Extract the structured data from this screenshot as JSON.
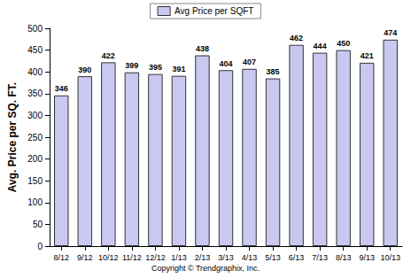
{
  "chart_data": {
    "type": "bar",
    "ylabel": "Avg. Price per SQ. FT.",
    "annotations": [
      "Copyright © Trendgraphix, Inc."
    ],
    "categories": [
      "8/12",
      "9/12",
      "10/12",
      "11/12",
      "12/12",
      "1/13",
      "2/13",
      "3/13",
      "4/13",
      "5/13",
      "6/13",
      "7/13",
      "8/13",
      "9/13",
      "10/13"
    ],
    "series": [
      {
        "name": "Avg Price per SQFT",
        "color": "#c8c8f0",
        "values": [
          346,
          390,
          422,
          399,
          395,
          391,
          438,
          404,
          407,
          385,
          462,
          444,
          450,
          421,
          474
        ]
      }
    ],
    "ylim": [
      0,
      500
    ],
    "yticks": [
      0,
      50,
      100,
      150,
      200,
      250,
      300,
      350,
      400,
      450,
      500
    ],
    "grid": false,
    "legend": "top",
    "data_labels": true
  }
}
